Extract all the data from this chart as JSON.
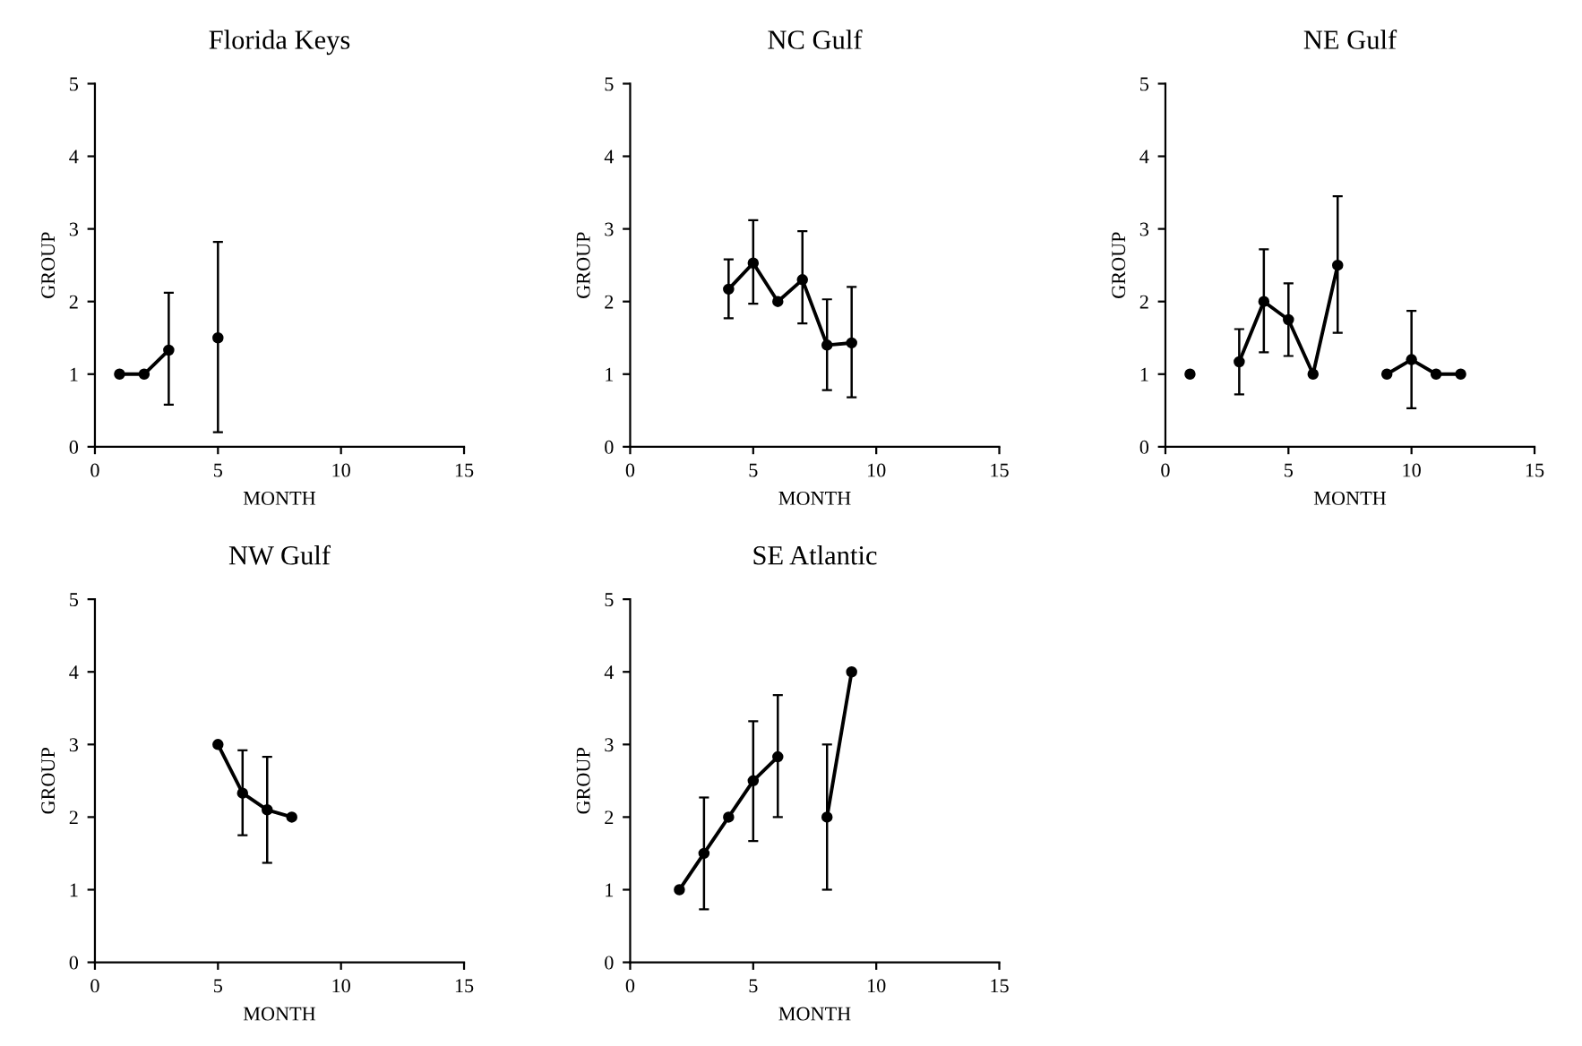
{
  "chart_data": [
    {
      "type": "line",
      "title": "Florida Keys",
      "xlabel": "MONTH",
      "ylabel": "GROUP",
      "x": [
        1,
        2,
        3,
        4,
        5
      ],
      "series": [
        {
          "color": "#000000",
          "values": [
            1,
            1,
            1.33,
            null,
            1.5
          ],
          "errors": [
            null,
            null,
            [
              0.58,
              2.12
            ],
            null,
            [
              0.2,
              2.82
            ]
          ]
        }
      ],
      "xlim": [
        0,
        15
      ],
      "xticks": [
        0,
        5,
        10,
        15
      ],
      "ylim": [
        0,
        5
      ],
      "yticks": [
        0,
        1,
        2,
        3,
        4,
        5
      ],
      "marker": "circle",
      "line_style": "solid"
    },
    {
      "type": "line",
      "title": "NC Gulf",
      "xlabel": "MONTH",
      "ylabel": "GROUP",
      "x": [
        4,
        5,
        6,
        7,
        8,
        9
      ],
      "series": [
        {
          "color": "#000000",
          "values": [
            2.17,
            2.53,
            2.0,
            2.3,
            1.4,
            1.43
          ],
          "errors": [
            [
              1.77,
              2.58
            ],
            [
              1.97,
              3.12
            ],
            null,
            [
              1.7,
              2.97
            ],
            [
              0.78,
              2.03
            ],
            [
              0.68,
              2.2
            ]
          ]
        }
      ],
      "xlim": [
        0,
        15
      ],
      "xticks": [
        0,
        5,
        10,
        15
      ],
      "ylim": [
        0,
        5
      ],
      "yticks": [
        0,
        1,
        2,
        3,
        4,
        5
      ],
      "marker": "circle",
      "line_style": "solid"
    },
    {
      "type": "line",
      "title": "NE Gulf",
      "xlabel": "MONTH",
      "ylabel": "GROUP",
      "x": [
        1,
        2,
        3,
        4,
        5,
        6,
        7,
        8,
        9,
        10,
        11,
        12
      ],
      "series": [
        {
          "color": "#000000",
          "values": [
            1,
            null,
            1.17,
            2.0,
            1.75,
            1.0,
            2.5,
            null,
            1.0,
            1.2,
            1.0,
            1.0
          ],
          "errors": [
            null,
            null,
            [
              0.72,
              1.62
            ],
            [
              1.3,
              2.72
            ],
            [
              1.25,
              2.25
            ],
            null,
            [
              1.57,
              3.45
            ],
            null,
            null,
            [
              0.53,
              1.87
            ],
            null,
            null
          ]
        }
      ],
      "xlim": [
        0,
        15
      ],
      "xticks": [
        0,
        5,
        10,
        15
      ],
      "ylim": [
        0,
        5
      ],
      "yticks": [
        0,
        1,
        2,
        3,
        4,
        5
      ],
      "marker": "circle",
      "line_style": "solid"
    },
    {
      "type": "line",
      "title": "NW Gulf",
      "xlabel": "MONTH",
      "ylabel": "GROUP",
      "x": [
        5,
        6,
        7,
        8
      ],
      "series": [
        {
          "color": "#000000",
          "values": [
            3,
            2.33,
            2.1,
            2.0
          ],
          "errors": [
            null,
            [
              1.75,
              2.92
            ],
            [
              1.37,
              2.83
            ],
            null
          ]
        }
      ],
      "xlim": [
        0,
        15
      ],
      "xticks": [
        0,
        5,
        10,
        15
      ],
      "ylim": [
        0,
        5
      ],
      "yticks": [
        0,
        1,
        2,
        3,
        4,
        5
      ],
      "marker": "circle",
      "line_style": "solid"
    },
    {
      "type": "line",
      "title": "SE Atlantic",
      "xlabel": "MONTH",
      "ylabel": "GROUP",
      "x": [
        2,
        3,
        4,
        5,
        6,
        7,
        8,
        9
      ],
      "series": [
        {
          "color": "#000000",
          "values": [
            1,
            1.5,
            2,
            2.5,
            2.83,
            null,
            2,
            4
          ],
          "errors": [
            null,
            [
              0.73,
              2.27
            ],
            null,
            [
              1.67,
              3.32
            ],
            [
              2.0,
              3.68
            ],
            null,
            [
              1,
              3
            ],
            null
          ]
        }
      ],
      "xlim": [
        0,
        15
      ],
      "xticks": [
        0,
        5,
        10,
        15
      ],
      "ylim": [
        0,
        5
      ],
      "yticks": [
        0,
        1,
        2,
        3,
        4,
        5
      ],
      "marker": "circle",
      "line_style": "solid"
    }
  ]
}
